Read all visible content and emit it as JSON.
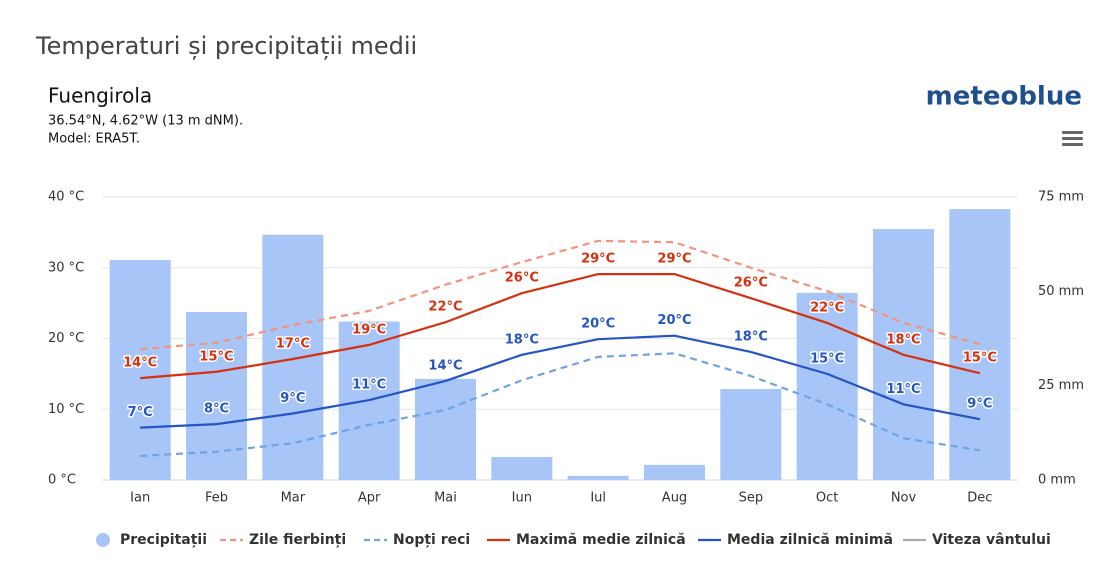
{
  "page_title": "Temperaturi și precipitații medii",
  "location": "Fuengirola",
  "coordinates": "36.54°N, 4.62°W (13 m dNM).",
  "model": "Model: ERA5T.",
  "brand": "meteoblue",
  "chart_data": {
    "type": "combo",
    "categories": [
      "Ian",
      "Feb",
      "Mar",
      "Apr",
      "Mai",
      "Iun",
      "Iul",
      "Aug",
      "Sep",
      "Oct",
      "Nov",
      "Dec"
    ],
    "ylim": [
      0,
      40
    ],
    "yticks": [
      {
        "value": 0,
        "label": "0 °C"
      },
      {
        "value": 10,
        "label": "10 °C"
      },
      {
        "value": 20,
        "label": "20 °C"
      },
      {
        "value": 30,
        "label": "30 °C"
      },
      {
        "value": 40,
        "label": "40 °C"
      }
    ],
    "y2lim": [
      0,
      75
    ],
    "y2ticks": [
      {
        "value": 0,
        "label": "0 mm"
      },
      {
        "value": 25,
        "label": "25 mm"
      },
      {
        "value": 50,
        "label": "50 mm"
      },
      {
        "value": 75,
        "label": "75 mm"
      }
    ],
    "grid": true,
    "series": [
      {
        "name": "Precipitații",
        "type": "bar",
        "axis": "y2",
        "color": "#a8c5f8",
        "values": [
          58.3,
          44.5,
          65,
          42,
          26.8,
          6.1,
          1.1,
          4,
          24.1,
          49.6,
          66.5,
          71.8
        ]
      },
      {
        "name": "Zile fierbinți",
        "type": "line",
        "dashed": true,
        "color": "#f2937f",
        "values": [
          18.5,
          19.4,
          21.9,
          23.9,
          27.6,
          30.8,
          33.8,
          33.6,
          30,
          26.7,
          22.2,
          19.2
        ]
      },
      {
        "name": "Nopți reci",
        "type": "line",
        "dashed": true,
        "color": "#6fa3e2",
        "values": [
          3.4,
          4,
          5.2,
          7.8,
          9.9,
          14.1,
          17.4,
          17.9,
          14.7,
          10.7,
          5.9,
          4.2
        ]
      },
      {
        "name": "Maximă medie zilnică",
        "type": "line",
        "color": "#d6310e",
        "values": [
          14.4,
          15.3,
          17.1,
          19.1,
          22.3,
          26.4,
          29.1,
          29.1,
          25.7,
          22.2,
          17.7,
          15.1
        ],
        "value_labels": [
          "14°C",
          "15°C",
          "17°C",
          "19°C",
          "22°C",
          "26°C",
          "29°C",
          "29°C",
          "26°C",
          "22°C",
          "18°C",
          "15°C"
        ]
      },
      {
        "name": "Media zilnică minimă",
        "type": "line",
        "color": "#2455c3",
        "values": [
          7.4,
          7.9,
          9.4,
          11.3,
          14,
          17.7,
          19.9,
          20.4,
          18.1,
          15,
          10.7,
          8.6
        ],
        "value_labels": [
          "7°C",
          "8°C",
          "9°C",
          "11°C",
          "14°C",
          "18°C",
          "20°C",
          "20°C",
          "18°C",
          "15°C",
          "11°C",
          "9°C"
        ]
      },
      {
        "name": "Viteza vântului",
        "type": "legend-only",
        "color": "#aaaaaa"
      }
    ]
  }
}
